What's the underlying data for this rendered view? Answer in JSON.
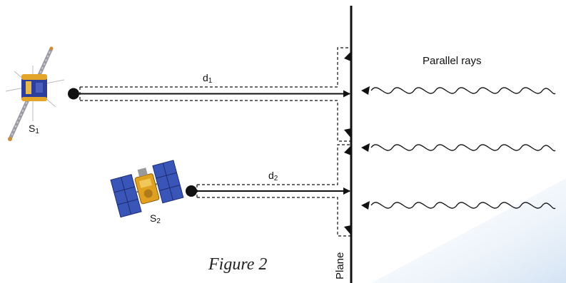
{
  "labels": {
    "parallel_rays": "Parallel rays",
    "d1": "d",
    "d1_sub": "1",
    "d2": "d",
    "d2_sub": "2",
    "s1": "S",
    "s1_sub": "1",
    "s2": "S",
    "s2_sub": "2",
    "plane": "Plane",
    "caption": "Figure 2"
  },
  "icons": [
    "satellite-s1-icon",
    "satellite-s2-icon"
  ],
  "colors": {
    "ink": "#111111",
    "panel": "#3b4fb0",
    "gold": "#e0a020",
    "bg_tint": "#dbe8f5"
  }
}
